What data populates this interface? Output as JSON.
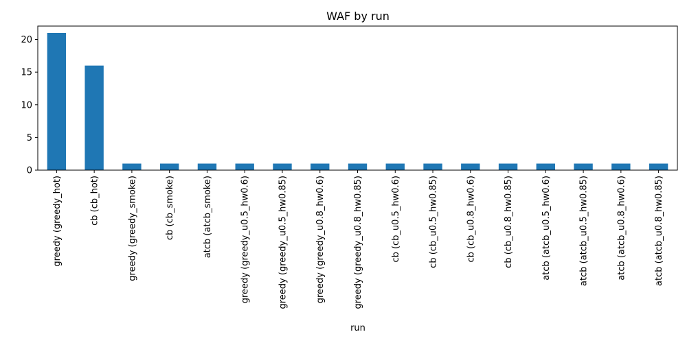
{
  "chart_data": {
    "type": "bar",
    "title": "WAF by run",
    "xlabel": "run",
    "ylabel": "",
    "ylim": [
      0,
      22.05
    ],
    "yticks": [
      0,
      5,
      10,
      15,
      20
    ],
    "grid": false,
    "legend": "none",
    "bar_color": "#1f77b4",
    "categories": [
      "greedy (greedy_hot)",
      "cb (cb_hot)",
      "greedy (greedy_smoke)",
      "cb (cb_smoke)",
      "atcb (atcb_smoke)",
      "greedy (greedy_u0.5_hw0.6)",
      "greedy (greedy_u0.5_hw0.85)",
      "greedy (greedy_u0.8_hw0.6)",
      "greedy (greedy_u0.8_hw0.85)",
      "cb (cb_u0.5_hw0.6)",
      "cb (cb_u0.5_hw0.85)",
      "cb (cb_u0.8_hw0.6)",
      "cb (cb_u0.8_hw0.85)",
      "atcb (atcb_u0.5_hw0.6)",
      "atcb (atcb_u0.5_hw0.85)",
      "atcb (atcb_u0.8_hw0.6)",
      "atcb (atcb_u0.8_hw0.85)"
    ],
    "values": [
      21,
      16,
      1,
      1,
      1,
      1,
      1,
      1,
      1,
      1,
      1,
      1,
      1,
      1,
      1,
      1,
      1
    ]
  }
}
